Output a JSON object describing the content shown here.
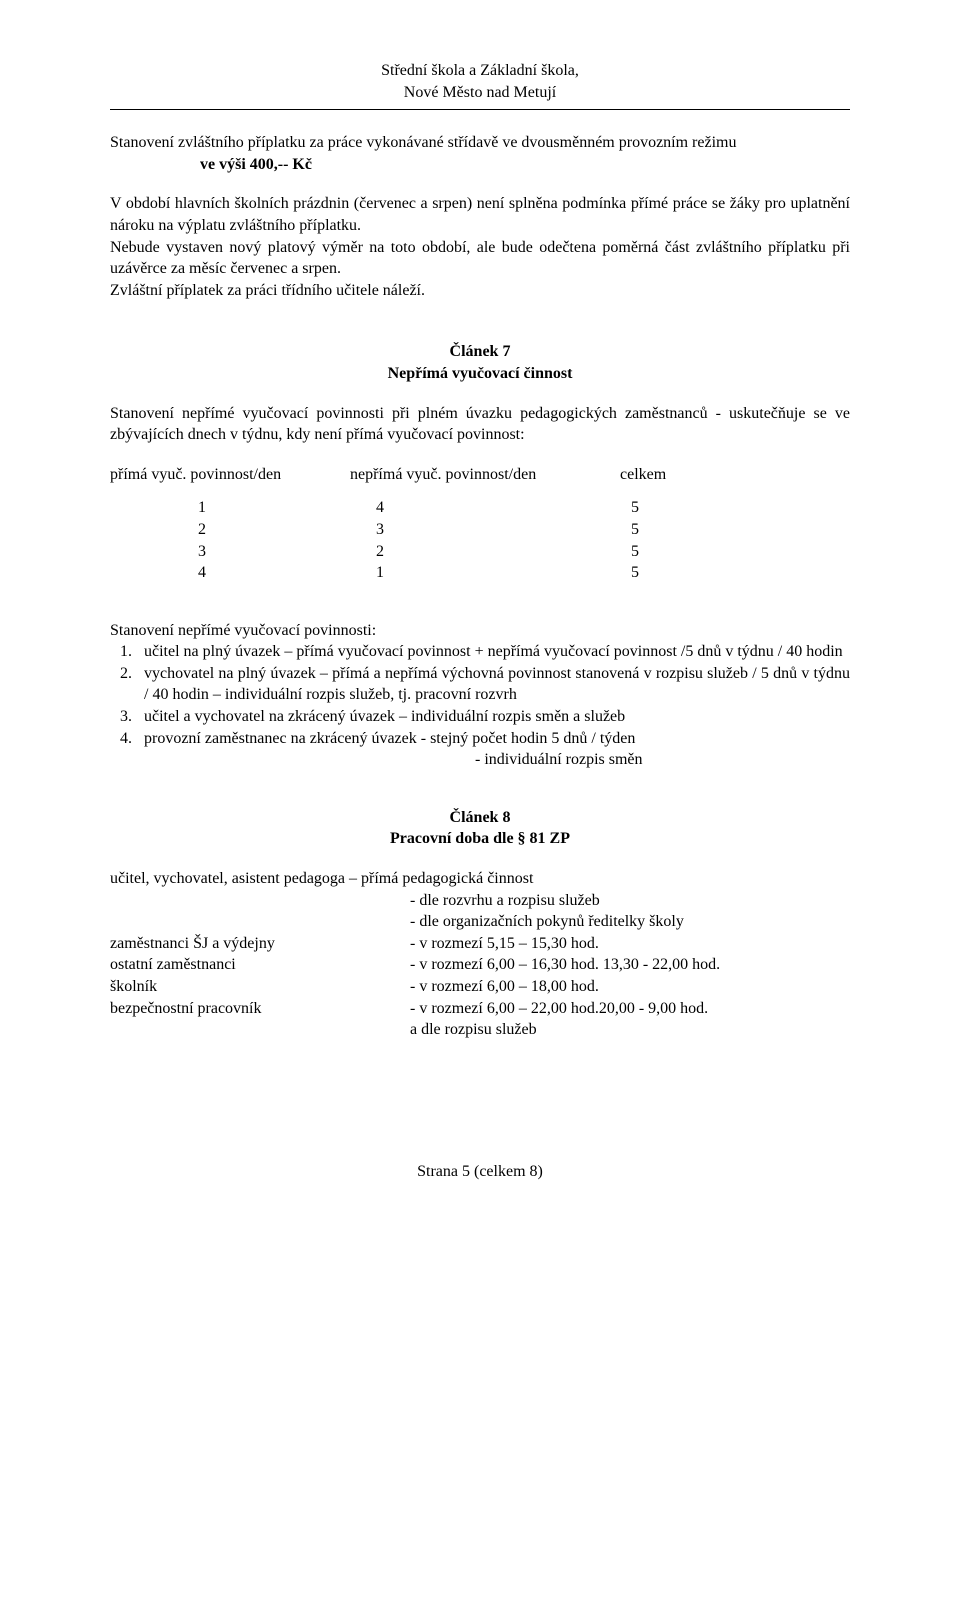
{
  "header": {
    "line1": "Střední škola a Základní škola,",
    "line2": "Nové Město nad Metují"
  },
  "intro": {
    "para1": "Stanovení zvláštního příplatku za práce vykonávané střídavě ve dvousměnném provozním režimu",
    "amount": "ve výši 400,-- Kč",
    "para2": "V období hlavních školních prázdnin (červenec a srpen) není splněna podmínka přímé práce se žáky pro uplatnění nároku na výplatu zvláštního příplatku.",
    "para3": "Nebude vystaven nový platový výměr na toto období, ale bude odečtena poměrná část zvláštního příplatku při uzávěrce za měsíc červenec a srpen.",
    "para4": "Zvláštní příplatek za práci třídního učitele náleží."
  },
  "article7": {
    "title": "Článek 7",
    "subtitle": "Nepřímá vyučovací činnost",
    "para": "Stanovení nepřímé vyučovací povinnosti při plném úvazku pedagogických zaměstnanců - uskutečňuje se ve zbývajících dnech v týdnu, kdy není přímá vyučovací povinnost:",
    "table": {
      "headers": {
        "c1": "přímá vyuč. povinnost/den",
        "c2": "nepřímá vyuč. povinnost/den",
        "c3": "celkem"
      },
      "rows": [
        {
          "c1": "1",
          "c2": "4",
          "c3": "5"
        },
        {
          "c1": "2",
          "c2": "3",
          "c3": "5"
        },
        {
          "c1": "3",
          "c2": "2",
          "c3": "5"
        },
        {
          "c1": "4",
          "c2": "1",
          "c3": "5"
        }
      ]
    },
    "list": {
      "intro": "Stanovení nepřímé vyučovací povinnosti:",
      "items": [
        {
          "n": "1.",
          "text": "učitel na plný úvazek – přímá vyučovací povinnost + nepřímá vyučovací povinnost /5 dnů v týdnu / 40 hodin"
        },
        {
          "n": "2.",
          "text": "vychovatel na plný úvazek – přímá a nepřímá výchovná povinnost stanovená v rozpisu služeb / 5 dnů v týdnu / 40 hodin – individuální rozpis služeb, tj. pracovní rozvrh"
        },
        {
          "n": "3.",
          "text": "učitel a vychovatel na zkrácený úvazek – individuální rozpis směn a služeb"
        },
        {
          "n": "4.",
          "text": "provozní zaměstnanec na zkrácený úvazek - stejný počet hodin 5 dnů / týden"
        }
      ],
      "item4_sub": "- individuální rozpis směn"
    }
  },
  "article8": {
    "title": "Článek 8",
    "subtitle": "Pracovní doba dle § 81 ZP",
    "line1": "učitel, vychovatel, asistent pedagoga – přímá pedagogická činnost",
    "sub1": "- dle rozvrhu a rozpisu služeb",
    "sub2": "- dle organizačních pokynů ředitelky školy",
    "rows": [
      {
        "label": "zaměstnanci ŠJ a výdejny",
        "value": "- v rozmezí 5,15 – 15,30 hod."
      },
      {
        "label": "ostatní zaměstnanci",
        "value": "- v rozmezí 6,00 – 16,30 hod. 13,30 - 22,00 hod."
      },
      {
        "label": "školník",
        "value": "- v rozmezí 6,00 – 18,00 hod."
      },
      {
        "label": "bezpečnostní pracovník",
        "value": "- v rozmezí 6,00 – 22,00 hod.20,00 -  9,00 hod."
      }
    ],
    "tail": "  a dle rozpisu služeb"
  },
  "footer": {
    "text": "Strana 5 (celkem 8)"
  }
}
